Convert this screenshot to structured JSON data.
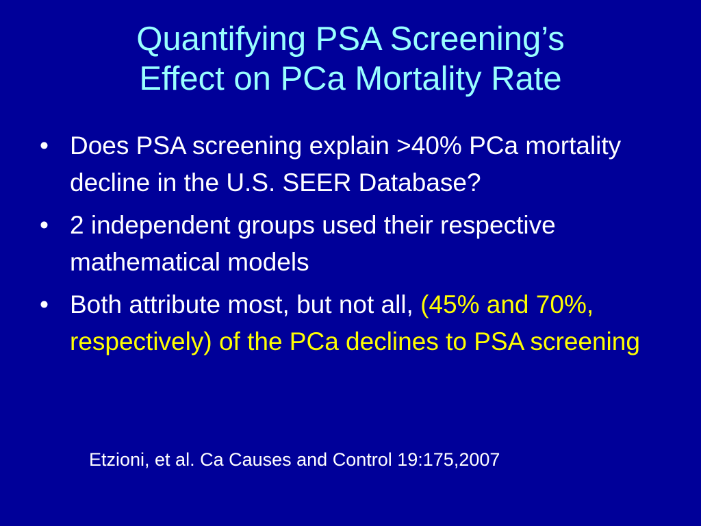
{
  "slide": {
    "title_line1": "Quantifying PSA Screening’s",
    "title_line2": "Effect on PCa Mortality Rate",
    "bullet_char": "•",
    "bullets": [
      {
        "text": "Does PSA screening explain >40% PCa mortality decline in the U.S. SEER Database?"
      },
      {
        "text": "2 independent groups used their respective mathematical models"
      },
      {
        "text_start": "Both attribute most, but not all, ",
        "text_highlight": "(45% and 70%, respectively) of the PCa declines to PSA screening"
      }
    ],
    "citation": "Etzioni, et al.  Ca Causes and Control 19:175,2007"
  },
  "colors": {
    "background": "#000099",
    "title": "#99ffff",
    "body": "#ffffff",
    "highlight": "#ffff00"
  }
}
